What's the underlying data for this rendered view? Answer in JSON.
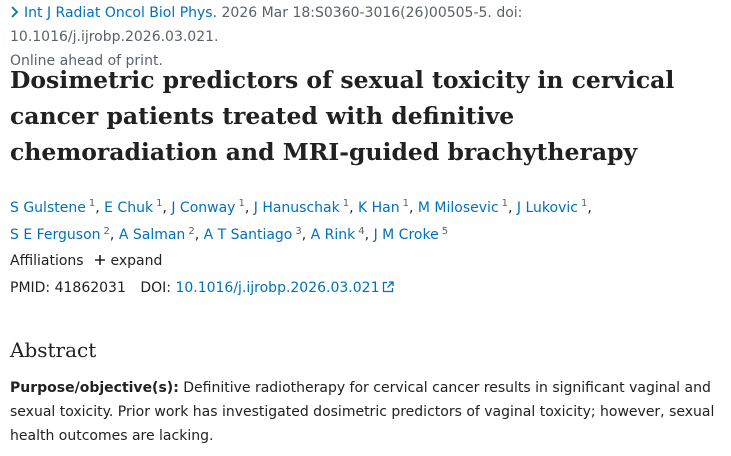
{
  "citation": {
    "journal": "Int J Radiat Oncol Biol Phys.",
    "details": "2026 Mar 18:S0360-3016(26)00505-5. doi: 10.1016/j.ijrobp.2026.03.021.",
    "status": "Online ahead of print."
  },
  "title": "Dosimetric predictors of sexual toxicity in cervical cancer patients treated with definitive chemoradiation and MRI-guided brachytherapy",
  "author_separator": ",",
  "authors": [
    {
      "name": "S Gulstene",
      "affiliation": "1"
    },
    {
      "name": "E Chuk",
      "affiliation": "1"
    },
    {
      "name": "J Conway",
      "affiliation": "1"
    },
    {
      "name": "J Hanuschak",
      "affiliation": "1"
    },
    {
      "name": "K Han",
      "affiliation": "1"
    },
    {
      "name": "M Milosevic",
      "affiliation": "1"
    },
    {
      "name": "J Lukovic",
      "affiliation": "1"
    },
    {
      "name": "S E Ferguson",
      "affiliation": "2"
    },
    {
      "name": "A Salman",
      "affiliation": "2"
    },
    {
      "name": "A T Santiago",
      "affiliation": "3"
    },
    {
      "name": "A Rink",
      "affiliation": "4"
    },
    {
      "name": "J M Croke",
      "affiliation": "5"
    }
  ],
  "affiliations": {
    "label": "Affiliations",
    "toggle": "expand"
  },
  "identifiers": {
    "pmid_label": "PMID:",
    "pmid": "41862031",
    "doi_label": "DOI:",
    "doi": "10.1016/j.ijrobp.2026.03.021"
  },
  "abstract": {
    "heading": "Abstract",
    "label": "Purpose/objective(s):",
    "text": "Definitive radiotherapy for cervical cancer results in significant vaginal and sexual toxicity. Prior work has investigated dosimetric predictors of vaginal toxicity; however, sexual health outcomes are lacking."
  }
}
